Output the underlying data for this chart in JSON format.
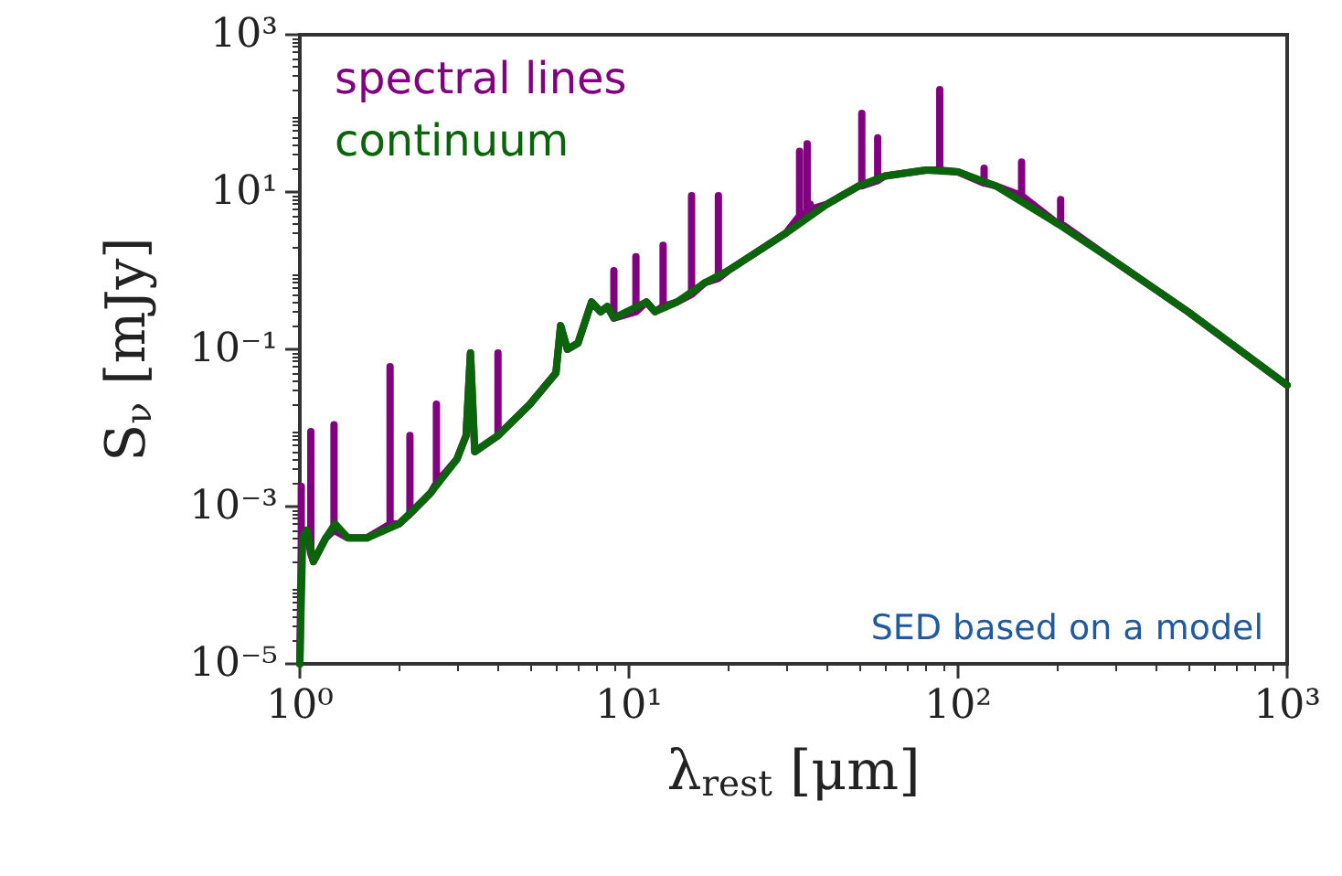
{
  "chart_data": {
    "type": "line",
    "xlabel": "λ$_{rest}$ [μm]",
    "ylabel": "S$_{ν}$ [mJy]",
    "log": "xy",
    "grid": false,
    "legend": "top left",
    "line_style": "solid",
    "marker": "none",
    "xlim": [
      1,
      1000
    ],
    "ylim": [
      1e-05,
      1000
    ],
    "xticks": [
      {
        "value": 1,
        "label": "10⁰"
      },
      {
        "value": 10,
        "label": "10¹"
      },
      {
        "value": 100,
        "label": "10²"
      },
      {
        "value": 1000,
        "label": "10³"
      }
    ],
    "yticks": [
      {
        "value": 1e-05,
        "label": "10⁻⁵"
      },
      {
        "value": 0.001,
        "label": "10⁻³"
      },
      {
        "value": 0.1,
        "label": "10⁻¹"
      },
      {
        "value": 10,
        "label": "10¹"
      },
      {
        "value": 1000,
        "label": "10³"
      }
    ],
    "annotations": [
      "SED based on a model"
    ],
    "series": [
      {
        "name": "spectral lines",
        "color": "#800080",
        "x": [
          1,
          1.01,
          1.01,
          1.01,
          1.05,
          1.08,
          1.08,
          1.08,
          1.1,
          1.2,
          1.27,
          1.27,
          1.27,
          1.4,
          1.6,
          1.88,
          1.88,
          1.88,
          2,
          2.16,
          2.16,
          2.16,
          2.5,
          2.6,
          2.6,
          2.6,
          3,
          3.2,
          3.3,
          3.4,
          4,
          4,
          4,
          5,
          6,
          6.2,
          6.5,
          7,
          7.7,
          8.2,
          8.6,
          9,
          9,
          9,
          10.5,
          10.5,
          10.5,
          11.3,
          12,
          12.7,
          12.7,
          12.7,
          14,
          15.5,
          15.5,
          15.5,
          17,
          18.7,
          18.7,
          18.7,
          20,
          30,
          33,
          33,
          33,
          34.8,
          34.8,
          34.8,
          35.5,
          35.5,
          35.5,
          40,
          50,
          51,
          51,
          51,
          57,
          57,
          57,
          60,
          80,
          88,
          88,
          88,
          100,
          120,
          120,
          120,
          130,
          156,
          156,
          156,
          200,
          205,
          205,
          205,
          300,
          500,
          1000
        ],
        "values": [
          1e-05,
          0.0003,
          0.0018,
          0.0003,
          0.0005,
          0.00025,
          0.009,
          0.00025,
          0.0002,
          0.0004,
          0.0005,
          0.011,
          0.0005,
          0.0004,
          0.0004,
          0.0006,
          0.06,
          0.0006,
          0.0006,
          0.0008,
          0.008,
          0.0008,
          0.0015,
          0.002,
          0.02,
          0.002,
          0.004,
          0.008,
          0.09,
          0.005,
          0.008,
          0.09,
          0.008,
          0.02,
          0.05,
          0.2,
          0.1,
          0.12,
          0.4,
          0.3,
          0.35,
          0.25,
          1,
          0.25,
          0.3,
          1.5,
          0.3,
          0.4,
          0.3,
          0.35,
          2.1,
          0.35,
          0.4,
          0.5,
          9,
          0.5,
          0.7,
          0.8,
          9,
          0.8,
          1,
          3,
          5,
          33,
          5,
          5.5,
          41,
          5.5,
          6,
          7,
          6,
          7,
          12,
          12,
          100,
          12,
          14,
          49,
          14,
          16,
          19,
          19,
          200,
          19,
          18,
          13,
          20,
          13,
          12,
          9,
          24,
          9,
          4,
          4,
          8,
          4,
          1.3,
          0.3,
          0.035
        ]
      },
      {
        "name": "continuum",
        "color": "#0a640a",
        "x": [
          1,
          1.02,
          1.05,
          1.1,
          1.2,
          1.28,
          1.4,
          1.6,
          2,
          2.5,
          3,
          3.2,
          3.3,
          3.4,
          4,
          5,
          6,
          6.2,
          6.5,
          7,
          7.7,
          8.2,
          8.6,
          9,
          11.3,
          12,
          14,
          17,
          20,
          30,
          40,
          50,
          60,
          80,
          100,
          130,
          200,
          300,
          500,
          1000
        ],
        "values": [
          1e-05,
          0.0004,
          0.0005,
          0.0002,
          0.0004,
          0.0006,
          0.0004,
          0.0004,
          0.0006,
          0.0015,
          0.004,
          0.008,
          0.09,
          0.005,
          0.008,
          0.02,
          0.05,
          0.2,
          0.1,
          0.12,
          0.4,
          0.3,
          0.35,
          0.25,
          0.4,
          0.3,
          0.4,
          0.7,
          1,
          3,
          7,
          12,
          16,
          19,
          18,
          12,
          4,
          1.3,
          0.3,
          0.035
        ]
      }
    ]
  }
}
